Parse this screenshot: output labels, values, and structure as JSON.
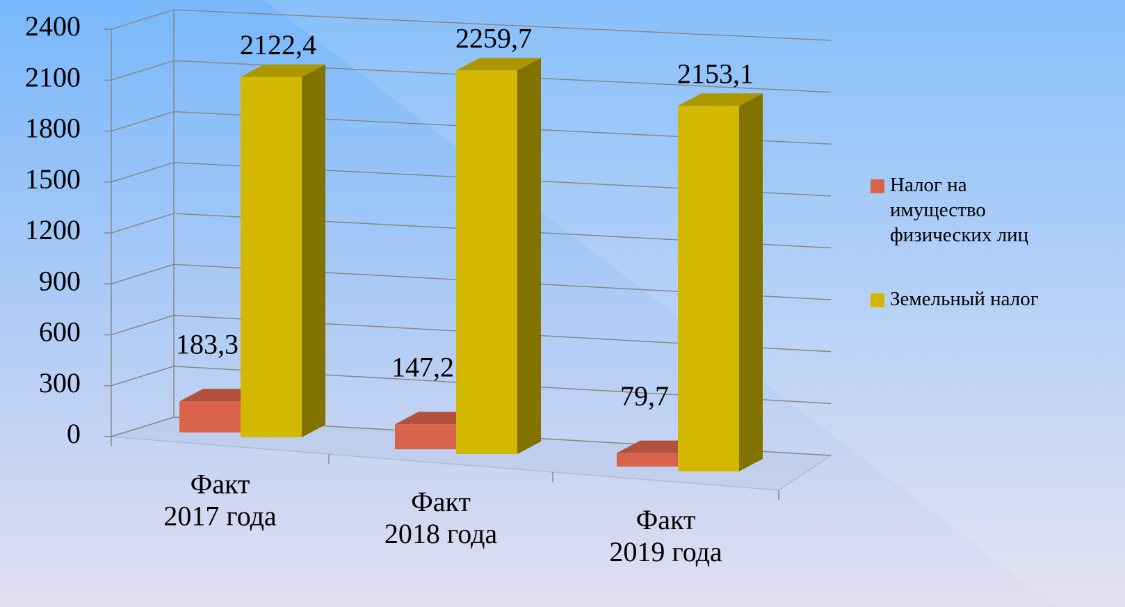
{
  "chart_data": {
    "type": "bar3d",
    "categories": [
      "Факт 2017 года",
      "Факт 2018 года",
      "Факт 2019 года"
    ],
    "series": [
      {
        "name": "Налог на имущество физических лиц",
        "color": "#d9634a",
        "values": [
          183.3,
          147.2,
          79.7
        ],
        "value_labels": [
          "183,3",
          "147,2",
          "79,7"
        ]
      },
      {
        "name": "Земельный налог",
        "color": "#d2b800",
        "values": [
          2122.4,
          2259.7,
          2153.1
        ],
        "value_labels": [
          "2122,4",
          "2259,7",
          "2153,1"
        ]
      }
    ],
    "ylim": [
      0,
      2400
    ],
    "yticks": [
      0,
      300,
      600,
      900,
      1200,
      1500,
      1800,
      2100,
      2400
    ],
    "grid": true,
    "legend": "right"
  }
}
